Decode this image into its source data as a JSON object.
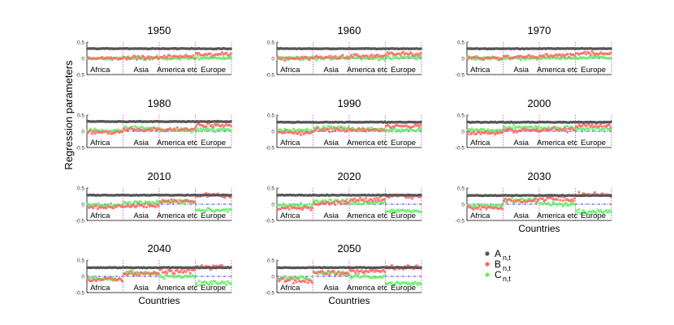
{
  "figure": {
    "ylabel": "Regression parameters",
    "xlabel": "Countries"
  },
  "legend": [
    {
      "symbol": "A",
      "sub": "n,t",
      "color": "#555555"
    },
    {
      "symbol": "B",
      "sub": "n,t",
      "color": "#ff6666"
    },
    {
      "symbol": "C",
      "sub": "n,t",
      "color": "#66ee66"
    }
  ],
  "chart_data": {
    "type": "scatter",
    "n_countries": 100,
    "regions": [
      "Africa",
      "Asia",
      "America etc",
      "Europe"
    ],
    "region_boundaries": [
      0,
      25,
      50,
      75,
      100
    ],
    "yticks": [
      "0.5",
      "0",
      "-0.5"
    ],
    "ylim": [
      -0.5,
      0.5
    ],
    "zero_line": 0,
    "series_colors": {
      "A": "#555555",
      "B": "#ff6666",
      "C": "#66ee66"
    },
    "panels": [
      {
        "title": "1950",
        "A": 0.3,
        "B_region": [
          0.0,
          0.02,
          0.05,
          0.12
        ],
        "C_region": [
          0.0,
          0.01,
          0.0,
          0.02
        ],
        "noise": 0.08,
        "show_xlabel": false
      },
      {
        "title": "1960",
        "A": 0.3,
        "B_region": [
          0.0,
          0.03,
          0.07,
          0.14
        ],
        "C_region": [
          0.0,
          0.01,
          0.0,
          0.02
        ],
        "noise": 0.09,
        "show_xlabel": false
      },
      {
        "title": "1970",
        "A": 0.3,
        "B_region": [
          0.0,
          0.03,
          0.08,
          0.15
        ],
        "C_region": [
          0.0,
          0.0,
          0.01,
          0.02
        ],
        "noise": 0.08,
        "show_xlabel": false
      },
      {
        "title": "1980",
        "A": 0.3,
        "B_region": [
          -0.03,
          0.06,
          0.05,
          0.18
        ],
        "C_region": [
          0.02,
          0.1,
          0.04,
          0.05
        ],
        "noise": 0.09,
        "show_xlabel": false
      },
      {
        "title": "1990",
        "A": 0.28,
        "B_region": [
          -0.04,
          0.06,
          0.06,
          0.17
        ],
        "C_region": [
          0.03,
          0.1,
          0.06,
          0.05
        ],
        "noise": 0.09,
        "show_xlabel": false
      },
      {
        "title": "2000",
        "A": 0.28,
        "B_region": [
          -0.06,
          0.02,
          0.06,
          0.18
        ],
        "C_region": [
          0.04,
          0.12,
          0.1,
          0.08
        ],
        "noise": 0.1,
        "show_xlabel": false
      },
      {
        "title": "2010",
        "A": 0.28,
        "B_region": [
          -0.08,
          -0.05,
          0.1,
          0.27
        ],
        "C_region": [
          -0.02,
          0.04,
          0.08,
          -0.18
        ],
        "noise": 0.09,
        "show_xlabel": false
      },
      {
        "title": "2020",
        "A": 0.28,
        "B_region": [
          -0.12,
          0.05,
          0.14,
          0.25
        ],
        "C_region": [
          -0.04,
          0.1,
          0.05,
          -0.2
        ],
        "noise": 0.1,
        "show_xlabel": false
      },
      {
        "title": "2030",
        "A": 0.27,
        "B_region": [
          -0.12,
          0.1,
          0.15,
          0.28
        ],
        "C_region": [
          -0.05,
          0.12,
          0.02,
          -0.23
        ],
        "noise": 0.11,
        "show_xlabel": true
      },
      {
        "title": "2040",
        "A": 0.27,
        "B_region": [
          -0.12,
          0.1,
          0.16,
          0.28
        ],
        "C_region": [
          -0.06,
          0.1,
          0.0,
          -0.2
        ],
        "noise": 0.11,
        "show_xlabel": true
      },
      {
        "title": "2050",
        "A": 0.27,
        "B_region": [
          -0.12,
          0.1,
          0.16,
          0.28
        ],
        "C_region": [
          -0.06,
          0.1,
          0.0,
          -0.22
        ],
        "noise": 0.11,
        "show_xlabel": true
      }
    ]
  }
}
